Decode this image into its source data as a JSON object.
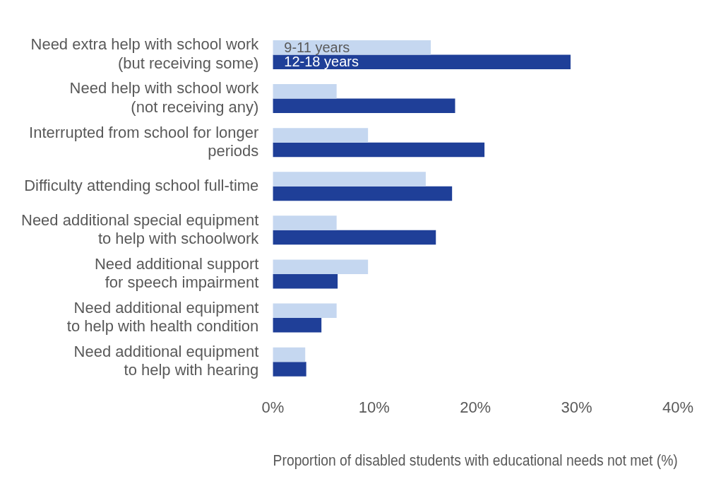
{
  "chart_data": {
    "type": "bar",
    "orientation": "horizontal",
    "xlabel": "Proportion of disabled students with educational needs not met (%)",
    "categories": [
      "Need extra help with school work\n(but receiving some)",
      "Need help with school work\n(not receiving any)",
      "Interrupted from school for longer\nperiods",
      "Difficulty attending school full-time",
      "Need additional special equipment\nto help with schoolwork",
      "Need additional support\nfor speech impairment",
      "Need additional equipment\nto help with health condition",
      "Need additional equipment\nto help with hearing"
    ],
    "series": [
      {
        "name": "9-11 years",
        "color": "#c5d7f0",
        "values": [
          15.6,
          6.3,
          9.4,
          15.1,
          6.3,
          9.4,
          6.3,
          3.2
        ]
      },
      {
        "name": "12-18 years",
        "color": "#1f3f98",
        "values": [
          29.4,
          18.0,
          20.9,
          17.7,
          16.1,
          6.4,
          4.8,
          3.3
        ]
      }
    ],
    "xlim": [
      0,
      40
    ],
    "xticks": [
      {
        "value": 0,
        "label": "0%"
      },
      {
        "value": 10,
        "label": "10%"
      },
      {
        "value": 20,
        "label": "20%"
      },
      {
        "value": 30,
        "label": "30%"
      },
      {
        "value": 40,
        "label": "40%"
      }
    ],
    "grid": false,
    "legend": false
  }
}
